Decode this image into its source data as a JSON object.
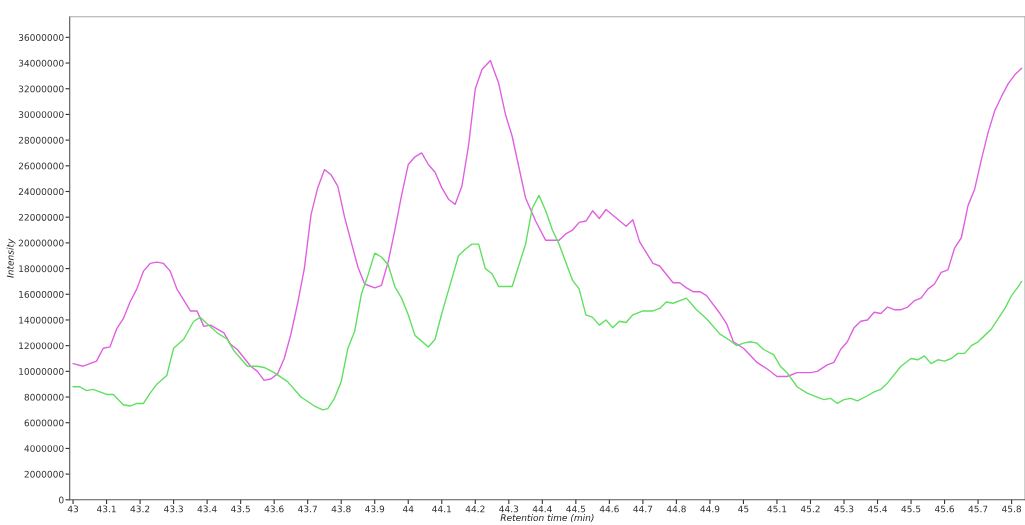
{
  "chart_data": {
    "type": "line",
    "xlabel": "Retention time (min)",
    "ylabel": "Intensity",
    "xlim": [
      42.99,
      45.84
    ],
    "ylim": [
      0,
      37600000
    ],
    "xticks": [
      43,
      43.1,
      43.2,
      43.3,
      43.4,
      43.5,
      43.6,
      43.7,
      43.8,
      43.9,
      44,
      44.1,
      44.2,
      44.3,
      44.4,
      44.5,
      44.6,
      44.7,
      44.8,
      44.9,
      45,
      45.1,
      45.2,
      45.3,
      45.4,
      45.5,
      45.6,
      45.7,
      45.8
    ],
    "yticks": [
      0,
      2000000,
      4000000,
      6000000,
      8000000,
      10000000,
      12000000,
      14000000,
      16000000,
      18000000,
      20000000,
      22000000,
      24000000,
      26000000,
      28000000,
      30000000,
      32000000,
      34000000,
      36000000
    ],
    "grid": false,
    "marker": "none",
    "line_style": "solid",
    "series": [
      {
        "color": "#e060e0",
        "x": [
          43.0,
          43.03,
          43.07,
          43.09,
          43.11,
          43.13,
          43.15,
          43.17,
          43.19,
          43.21,
          43.23,
          43.25,
          43.27,
          43.29,
          43.31,
          43.35,
          43.37,
          43.39,
          43.41,
          43.45,
          43.47,
          43.49,
          43.53,
          43.55,
          43.57,
          43.59,
          43.61,
          43.63,
          43.65,
          43.67,
          43.69,
          43.71,
          43.73,
          43.75,
          43.77,
          43.79,
          43.81,
          43.85,
          43.87,
          43.9,
          43.92,
          43.94,
          43.96,
          43.98,
          44.0,
          44.02,
          44.04,
          44.06,
          44.08,
          44.1,
          44.12,
          44.14,
          44.16,
          44.18,
          44.2,
          44.22,
          44.245,
          44.27,
          44.29,
          44.31,
          44.35,
          44.38,
          44.41,
          44.45,
          44.47,
          44.49,
          44.51,
          44.53,
          44.55,
          44.57,
          44.59,
          44.65,
          44.67,
          44.69,
          44.73,
          44.75,
          44.79,
          44.81,
          44.83,
          44.85,
          44.87,
          44.89,
          44.93,
          44.95,
          44.97,
          45.0,
          45.04,
          45.07,
          45.1,
          45.13,
          45.16,
          45.2,
          45.22,
          45.25,
          45.27,
          45.29,
          45.31,
          45.33,
          45.35,
          45.37,
          45.39,
          45.41,
          45.43,
          45.45,
          45.47,
          45.49,
          45.51,
          45.53,
          45.55,
          45.57,
          45.59,
          45.61,
          45.63,
          45.65,
          45.67,
          45.69,
          45.71,
          45.73,
          45.75,
          45.77,
          45.79,
          45.81,
          45.83
        ],
        "values": [
          10600000,
          10400000,
          10800000,
          11800000,
          11900000,
          13300000,
          14100000,
          15400000,
          16400000,
          17800000,
          18400000,
          18500000,
          18400000,
          17800000,
          16400000,
          14700000,
          14700000,
          13500000,
          13600000,
          13000000,
          12100000,
          11700000,
          10400000,
          10000000,
          9300000,
          9400000,
          9800000,
          11000000,
          12900000,
          15300000,
          18000000,
          22200000,
          24300000,
          25700000,
          25300000,
          24400000,
          22000000,
          18100000,
          16800000,
          16500000,
          16700000,
          18500000,
          21000000,
          23700000,
          26100000,
          26700000,
          27000000,
          26100000,
          25500000,
          24300000,
          23400000,
          23000000,
          24400000,
          27600000,
          32000000,
          33500000,
          34200000,
          32400000,
          30000000,
          28300000,
          23500000,
          21700000,
          20200000,
          20200000,
          20700000,
          21000000,
          21600000,
          21700000,
          22500000,
          21900000,
          22600000,
          21300000,
          21800000,
          20100000,
          18400000,
          18200000,
          16900000,
          16900000,
          16500000,
          16200000,
          16200000,
          15900000,
          14500000,
          13700000,
          12300000,
          11800000,
          10700000,
          10200000,
          9600000,
          9600000,
          9900000,
          9900000,
          10000000,
          10500000,
          10700000,
          11700000,
          12300000,
          13400000,
          13900000,
          14000000,
          14600000,
          14500000,
          15000000,
          14800000,
          14800000,
          15000000,
          15500000,
          15700000,
          16400000,
          16800000,
          17700000,
          17900000,
          19600000,
          20400000,
          22900000,
          24200000,
          26500000,
          28600000,
          30300000,
          31400000,
          32400000,
          33100000,
          33600000
        ]
      },
      {
        "color": "#60e060",
        "x": [
          43.0,
          43.02,
          43.04,
          43.06,
          43.08,
          43.1,
          43.12,
          43.15,
          43.17,
          43.19,
          43.21,
          43.23,
          43.25,
          43.28,
          43.3,
          43.33,
          43.36,
          43.38,
          43.4,
          43.43,
          43.46,
          43.48,
          43.5,
          43.52,
          43.55,
          43.57,
          43.6,
          43.64,
          43.68,
          43.72,
          43.745,
          43.76,
          43.78,
          43.8,
          43.82,
          43.84,
          43.86,
          43.88,
          43.9,
          43.92,
          43.94,
          43.96,
          43.98,
          44.0,
          44.02,
          44.06,
          44.08,
          44.1,
          44.13,
          44.15,
          44.17,
          44.19,
          44.21,
          44.23,
          44.25,
          44.27,
          44.31,
          44.35,
          44.37,
          44.39,
          44.41,
          44.43,
          44.45,
          44.49,
          44.51,
          44.53,
          44.55,
          44.57,
          44.59,
          44.61,
          44.63,
          44.65,
          44.67,
          44.7,
          44.73,
          44.75,
          44.77,
          44.79,
          44.83,
          44.86,
          44.89,
          44.93,
          44.96,
          44.98,
          45.0,
          45.02,
          45.04,
          45.06,
          45.09,
          45.11,
          45.13,
          45.16,
          45.19,
          45.22,
          45.24,
          45.26,
          45.28,
          45.3,
          45.32,
          45.34,
          45.37,
          45.39,
          45.41,
          45.43,
          45.47,
          45.5,
          45.52,
          45.54,
          45.56,
          45.58,
          45.6,
          45.62,
          45.64,
          45.66,
          45.68,
          45.7,
          45.72,
          45.74,
          45.76,
          45.78,
          45.8,
          45.82,
          45.83
        ],
        "values": [
          8800000,
          8800000,
          8500000,
          8600000,
          8400000,
          8200000,
          8200000,
          7400000,
          7300000,
          7500000,
          7500000,
          8300000,
          9000000,
          9700000,
          11800000,
          12500000,
          13900000,
          14200000,
          13700000,
          13000000,
          12500000,
          11600000,
          11000000,
          10400000,
          10400000,
          10300000,
          9900000,
          9200000,
          8000000,
          7300000,
          7000000,
          7100000,
          7900000,
          9200000,
          11800000,
          13100000,
          16000000,
          17500000,
          19200000,
          18900000,
          18300000,
          16600000,
          15700000,
          14400000,
          12800000,
          11900000,
          12500000,
          14500000,
          17200000,
          19000000,
          19500000,
          19900000,
          19900000,
          18000000,
          17600000,
          16600000,
          16600000,
          19900000,
          22700000,
          23700000,
          22500000,
          21000000,
          19900000,
          17100000,
          16400000,
          14400000,
          14200000,
          13600000,
          14000000,
          13400000,
          13900000,
          13800000,
          14400000,
          14700000,
          14700000,
          14900000,
          15400000,
          15300000,
          15700000,
          14800000,
          14100000,
          12900000,
          12400000,
          12000000,
          12200000,
          12300000,
          12200000,
          11700000,
          11300000,
          10400000,
          9900000,
          8800000,
          8300000,
          8000000,
          7800000,
          7900000,
          7500000,
          7800000,
          7900000,
          7700000,
          8100000,
          8400000,
          8600000,
          9100000,
          10400000,
          11000000,
          10900000,
          11200000,
          10600000,
          10900000,
          10800000,
          11000000,
          11400000,
          11400000,
          12000000,
          12300000,
          12800000,
          13300000,
          14100000,
          14900000,
          15900000,
          16600000,
          17000000
        ]
      }
    ]
  }
}
